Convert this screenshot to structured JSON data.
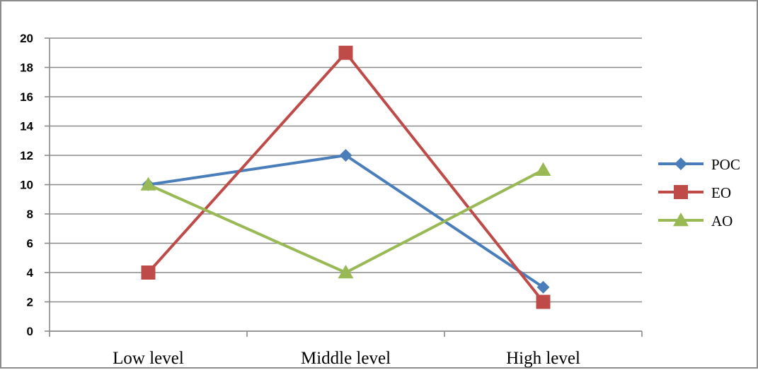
{
  "chart_data": {
    "type": "line",
    "title": "",
    "xlabel": "",
    "ylabel": "",
    "categories": [
      "Low level",
      "Middle level",
      "High level"
    ],
    "ylim": [
      0,
      20
    ],
    "y_ticks": [
      "0",
      "2",
      "4",
      "6",
      "8",
      "10",
      "12",
      "14",
      "16",
      "18",
      "20"
    ],
    "grid": true,
    "legend_position": "right",
    "series": [
      {
        "name": "POC",
        "values": [
          10,
          12,
          3
        ],
        "color": "#4a7ebb",
        "marker": "diamond"
      },
      {
        "name": "EO",
        "values": [
          4,
          19,
          2
        ],
        "color": "#be4b48",
        "marker": "square"
      },
      {
        "name": "AO",
        "values": [
          10,
          4,
          11
        ],
        "color": "#98b954",
        "marker": "triangle"
      }
    ]
  }
}
